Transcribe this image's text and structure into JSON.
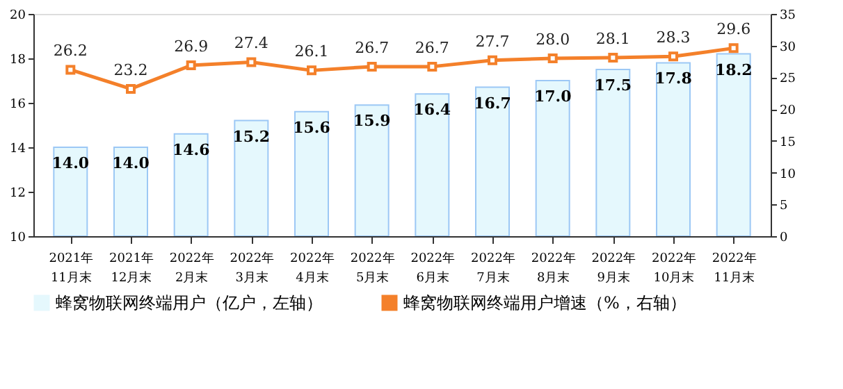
{
  "chart_data": {
    "type": "bar",
    "categories": [
      "2021年\n11月末",
      "2021年\n12月末",
      "2022年\n2月末",
      "2022年\n3月末",
      "2022年\n4月末",
      "2022年\n5月末",
      "2022年\n6月末",
      "2022年\n7月末",
      "2022年\n8月末",
      "2022年\n9月末",
      "2022年\n10月末",
      "2022年\n11月末"
    ],
    "series": [
      {
        "name": "蜂窝物联网终端用户（亿户，左轴）",
        "color": "#e5f8fd",
        "values": [
          14.0,
          14.0,
          14.6,
          15.2,
          15.6,
          15.9,
          16.4,
          16.7,
          17.0,
          17.5,
          17.8,
          18.2
        ],
        "value_labels": [
          "14.0",
          "14.0",
          "14.6",
          "15.2",
          "15.6",
          "15.9",
          "16.4",
          "16.7",
          "17.0",
          "17.5",
          "17.8",
          "18.2"
        ]
      },
      {
        "name": "蜂窝物联网终端用户增速（%，右轴）",
        "type": "line",
        "axis": "y2",
        "color": "#f4802a",
        "marker": "square",
        "values": [
          26.2,
          23.2,
          26.9,
          27.4,
          26.1,
          26.7,
          26.7,
          27.7,
          28.0,
          28.1,
          28.3,
          29.6
        ],
        "value_labels": [
          "26.2",
          "23.2",
          "26.9",
          "27.4",
          "26.1",
          "26.7",
          "26.7",
          "27.7",
          "28.0",
          "28.1",
          "28.3",
          "29.6"
        ]
      }
    ],
    "ylim": [
      10,
      20
    ],
    "yticks": [
      10,
      12,
      14,
      16,
      18,
      20
    ],
    "y2lim": [
      0,
      35
    ],
    "y2ticks": [
      0,
      5,
      10,
      15,
      20,
      25,
      30,
      35
    ],
    "legend": "bottom"
  }
}
